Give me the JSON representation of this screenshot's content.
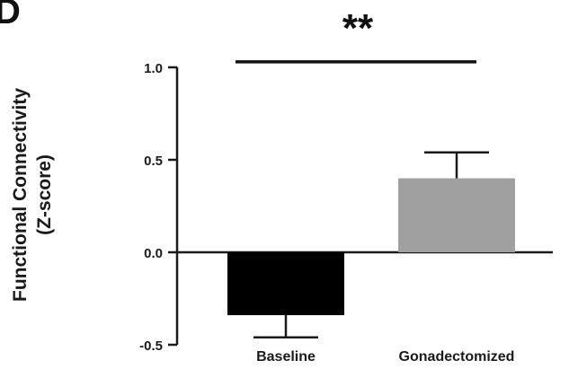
{
  "panel_letter": "D",
  "chart_data": {
    "type": "bar",
    "title": "",
    "xlabel": "",
    "ylabel_lines": [
      "Functional Connectivity",
      "(Z-score)"
    ],
    "categories": [
      "Baseline",
      "Gonadectomized"
    ],
    "values": [
      -0.34,
      0.4
    ],
    "errors": [
      0.12,
      0.14
    ],
    "bar_colors": [
      "#000000",
      "#a0a0a1"
    ],
    "ylim": [
      -0.5,
      1.0
    ],
    "yticks": [
      1.0,
      0.5,
      0.0,
      -0.5
    ],
    "ytick_labels": [
      "1.0",
      "0.5",
      "0.0",
      "-0.5"
    ],
    "significance": {
      "label": "**",
      "y": 1.03
    },
    "grid": false,
    "legend": "none"
  }
}
